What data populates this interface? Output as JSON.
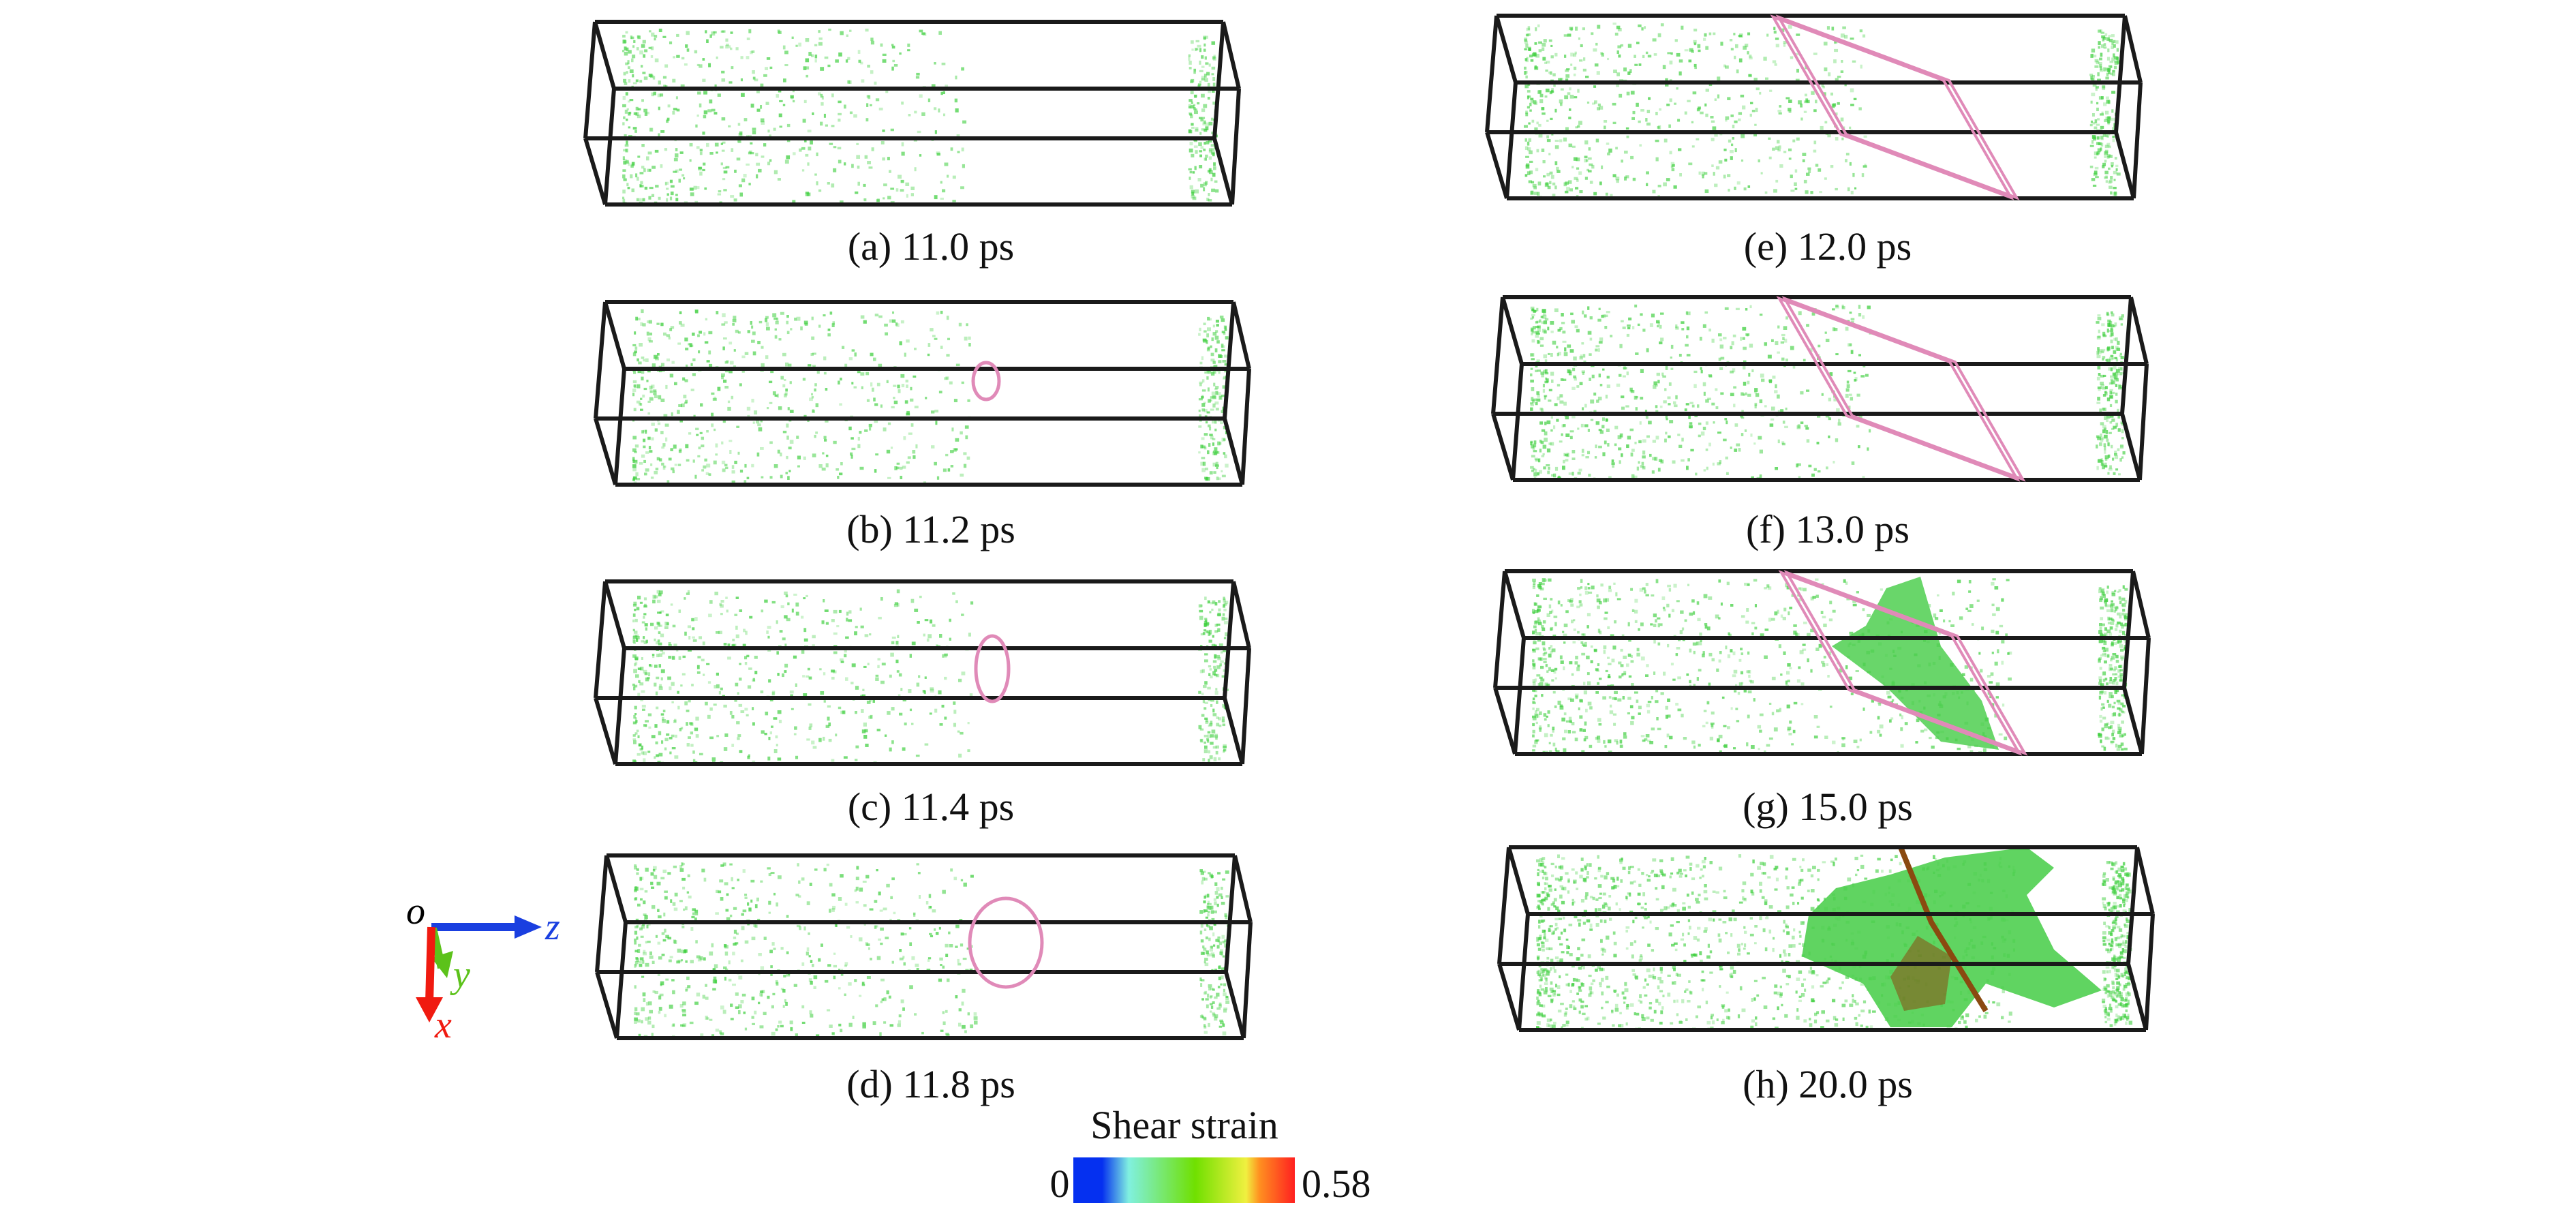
{
  "panels": [
    {
      "caption": "(a) 11.0 ps",
      "column": "left",
      "marker": "none",
      "density": 1
    },
    {
      "caption": "(b) 11.2 ps",
      "column": "left",
      "marker": "small-circle",
      "density": 1
    },
    {
      "caption": "(c) 11.4 ps",
      "column": "left",
      "marker": "medium-circle",
      "density": 1
    },
    {
      "caption": "(d) 11.8 ps",
      "column": "left",
      "marker": "large-circle",
      "density": 1
    },
    {
      "caption": "(e) 12.0 ps",
      "column": "right",
      "marker": "parallelogram",
      "density": 1.1
    },
    {
      "caption": "(f) 13.0 ps",
      "column": "right",
      "marker": "parallelogram",
      "density": 1.2
    },
    {
      "caption": "(g) 15.0 ps",
      "column": "right",
      "marker": "parallelogram",
      "density": 1.5
    },
    {
      "caption": "(h) 20.0 ps",
      "column": "right",
      "marker": "none",
      "density": 2
    }
  ],
  "axes": {
    "origin": "o",
    "z": "z",
    "y": "y",
    "x": "x",
    "colors": {
      "z": "#1a3fe0",
      "y": "#5cc21a",
      "x": "#f01a10",
      "origin": "#000000"
    }
  },
  "colorbar": {
    "title": "Shear strain",
    "min": "0",
    "max": "0.58",
    "colors": [
      "#0530f0",
      "#0530f0",
      "#80f0e0",
      "#70e000",
      "#f0f040",
      "#ff9020",
      "#ff2020"
    ]
  },
  "colors": {
    "box": "#1a1a1a",
    "atoms": "#3ecf3e",
    "marker": "#e08ab8",
    "high_strain": "#8a4a10"
  }
}
